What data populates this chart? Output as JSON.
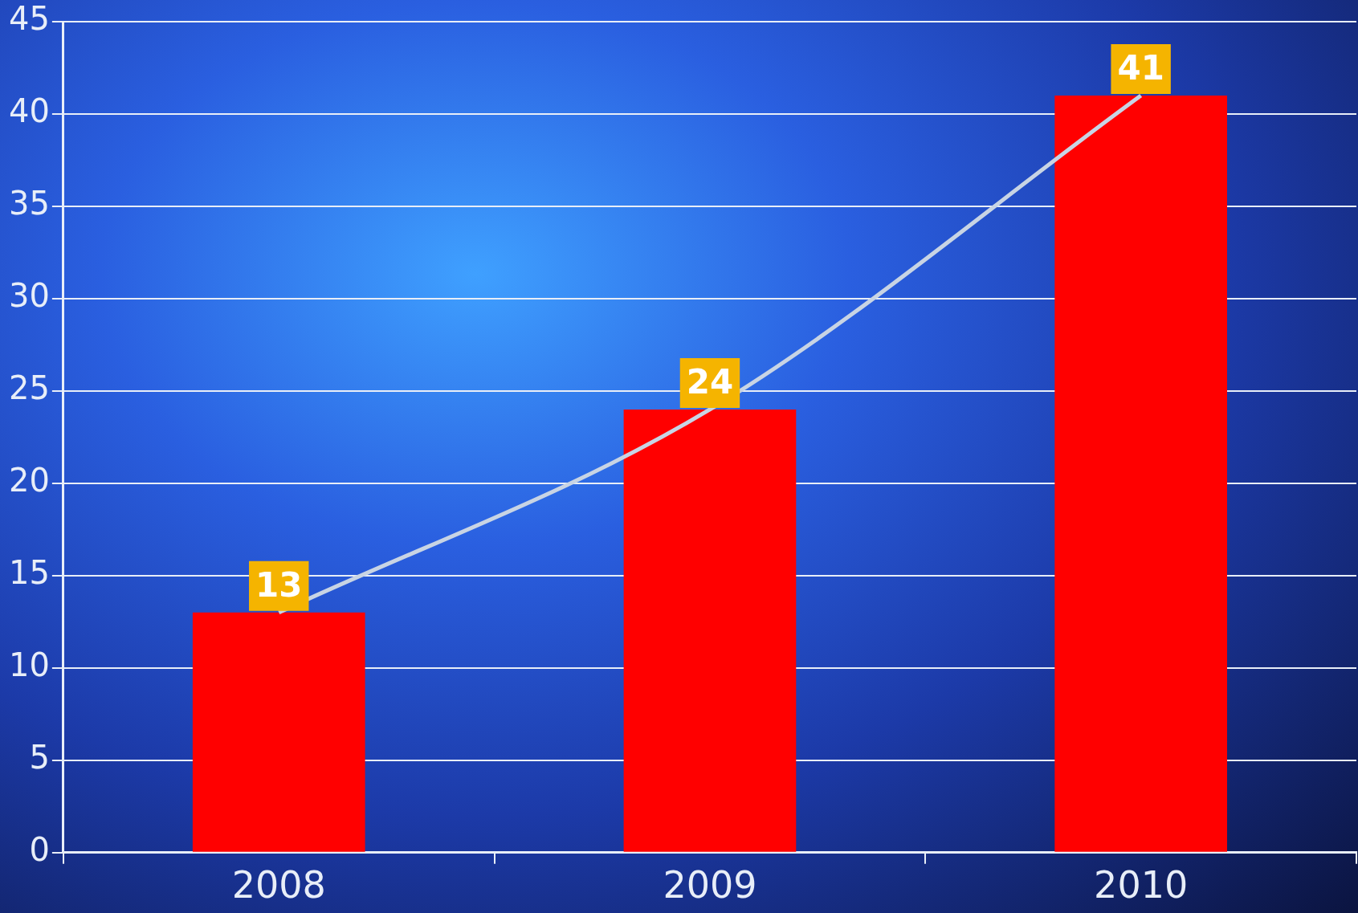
{
  "chart_data": {
    "type": "bar",
    "categories": [
      "2008",
      "2009",
      "2010"
    ],
    "series": [
      {
        "color": "#ff0000",
        "values": [
          13,
          24,
          41
        ],
        "value_labels": [
          "13",
          "24",
          "41"
        ]
      },
      {
        "type": "line",
        "color": "#c8d4e4",
        "values": [
          13,
          24,
          41
        ]
      }
    ],
    "ylim": [
      0,
      45
    ],
    "yticks": [
      0,
      5,
      10,
      15,
      20,
      25,
      30,
      35,
      40,
      45
    ],
    "grid": "y",
    "legend": false,
    "marker": "none"
  }
}
